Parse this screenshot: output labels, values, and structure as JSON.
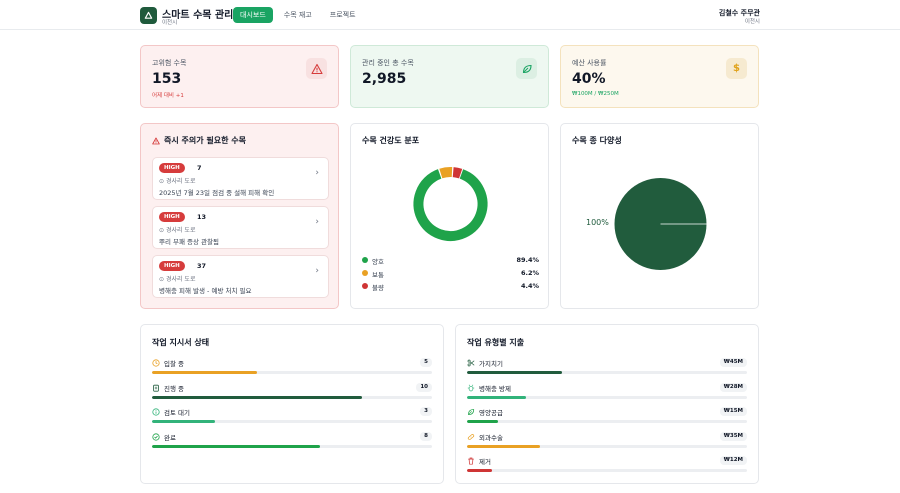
{
  "header": {
    "title": "스마트 수목 관리",
    "subtitle": "이천시",
    "tabs": [
      {
        "label": "대시보드",
        "active": true
      },
      {
        "label": "수목 재고",
        "active": false
      },
      {
        "label": "프로젝트",
        "active": false
      }
    ],
    "user": {
      "name": "김철수 주무관",
      "org": "이천시"
    }
  },
  "stats": [
    {
      "label": "고위험 수목",
      "value": "153",
      "note": "어제 대비 +1",
      "icon": "warning-icon",
      "color": "#d63c3c"
    },
    {
      "label": "관리 중인 총 수목",
      "value": "2,985",
      "note": "",
      "icon": "leaf-icon",
      "color": "#1aa463"
    },
    {
      "label": "예산 사용률",
      "value": "40%",
      "note": "₩100M / ₩250M",
      "icon": "dollar-icon",
      "color": "#e0a21a"
    }
  ],
  "attention": {
    "title": "즉시 주의가 필요한 수목",
    "items": [
      {
        "priority": "HIGH",
        "count": "7",
        "location": "경사리 도로",
        "description": "2025년 7월 23일 점검 중 설해 피해 확인"
      },
      {
        "priority": "HIGH",
        "count": "13",
        "location": "경사리 도로",
        "description": "뿌리 부패 증상 관찰됨"
      },
      {
        "priority": "HIGH",
        "count": "37",
        "location": "경사리 도로",
        "description": "병해충 피해 발생 - 예방 처치 필요"
      }
    ]
  },
  "health": {
    "title": "수목 건강도 분포",
    "segments": [
      {
        "name": "양호",
        "pct_label": "89.4%",
        "value": 89.4,
        "color": "#1fa34a"
      },
      {
        "name": "보통",
        "pct_label": "6.2%",
        "value": 6.2,
        "color": "#e9a124"
      },
      {
        "name": "불량",
        "pct_label": "4.4%",
        "value": 4.4,
        "color": "#cf3535"
      }
    ]
  },
  "diversity": {
    "title": "수목 종 다양성",
    "label": "100%",
    "value": 100,
    "color": "#215c3d"
  },
  "work_orders": {
    "title": "작업 지시서 상태",
    "max": 12,
    "items": [
      {
        "label": "입찰 중",
        "count": "5",
        "value": 5,
        "icon": "clock-icon",
        "color": "#e9a124"
      },
      {
        "label": "진행 중",
        "count": "10",
        "value": 10,
        "icon": "clipboard-icon",
        "color": "#215c3d"
      },
      {
        "label": "검토 대기",
        "count": "3",
        "value": 3,
        "icon": "info-circle-icon",
        "color": "#32b37a"
      },
      {
        "label": "완료",
        "count": "8",
        "value": 8,
        "icon": "check-circle-icon",
        "color": "#1fa34a"
      }
    ]
  },
  "spending": {
    "title": "작업 유형별 지출",
    "max": 45,
    "items": [
      {
        "label": "가지치기",
        "amount": "₩45M",
        "value": 45,
        "fill": 0.34,
        "icon": "scissors-icon",
        "color": "#215c3d"
      },
      {
        "label": "병해충 방제",
        "amount": "₩28M",
        "value": 28,
        "fill": 0.21,
        "icon": "bug-icon",
        "color": "#32b37a"
      },
      {
        "label": "영양공급",
        "amount": "₩15M",
        "value": 15,
        "fill": 0.11,
        "icon": "leaf-icon",
        "color": "#1fa34a"
      },
      {
        "label": "외과수술",
        "amount": "₩35M",
        "value": 35,
        "fill": 0.26,
        "icon": "bandage-icon",
        "color": "#e9a124"
      },
      {
        "label": "제거",
        "amount": "₩12M",
        "value": 12,
        "fill": 0.09,
        "icon": "trash-icon",
        "color": "#cf3535"
      }
    ]
  }
}
